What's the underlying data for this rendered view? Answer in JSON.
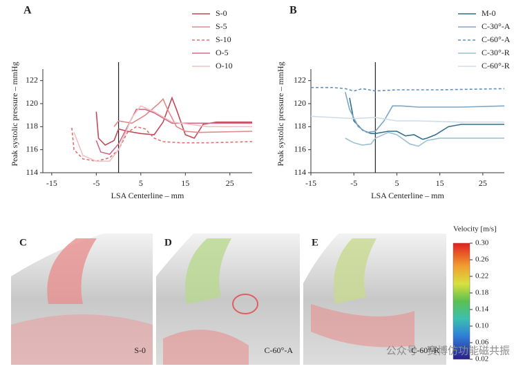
{
  "chart_data": [
    {
      "type": "line",
      "panel_label": "A",
      "xlabel": "LSA Centerline – mm",
      "ylabel": "Peak systolic pressure – mmHg",
      "xlim": [
        -17,
        30
      ],
      "xticks": [
        -15,
        -5,
        5,
        15,
        25
      ],
      "ylim": [
        114,
        123
      ],
      "yticks": [
        114,
        116,
        118,
        120,
        122
      ],
      "reference_line_x": 0,
      "legend": "top-right",
      "series": [
        {
          "name": "S-0",
          "color": "#c04a58",
          "dash": false,
          "x": [
            -5,
            -4.5,
            -3,
            -1,
            0,
            2,
            5,
            8,
            10,
            12,
            13,
            15,
            17,
            19,
            22,
            30
          ],
          "values": [
            119.3,
            117,
            116.4,
            116.8,
            117.8,
            117.6,
            117.4,
            117.3,
            118.4,
            120.5,
            119.5,
            117.3,
            117,
            118.2,
            118.4,
            118.4
          ]
        },
        {
          "name": "S-5",
          "color": "#e08a86",
          "dash": false,
          "x": [
            -1,
            0,
            3,
            6,
            9,
            10,
            11,
            13,
            15,
            18,
            30
          ],
          "values": [
            118,
            118.5,
            118.3,
            119,
            120,
            120.4,
            119.5,
            118,
            117.6,
            117.5,
            117.6
          ]
        },
        {
          "name": "S-10",
          "color": "#e07070",
          "dash": true,
          "x": [
            -10.5,
            -10,
            -8,
            -5,
            -2,
            0,
            2,
            4,
            6,
            8,
            10,
            14,
            20,
            30
          ],
          "values": [
            117.9,
            116,
            115.2,
            115,
            115.3,
            116,
            117.5,
            118,
            117.8,
            117,
            116.7,
            116.6,
            116.6,
            116.7
          ]
        },
        {
          "name": "O-5",
          "color": "#d06a8a",
          "dash": false,
          "x": [
            -5,
            -4,
            -2,
            0,
            2,
            4,
            6,
            8,
            12,
            20,
            30
          ],
          "values": [
            116.8,
            115.8,
            115.6,
            116.5,
            118,
            119.5,
            119.5,
            119.2,
            118.3,
            118.3,
            118.3
          ]
        },
        {
          "name": "O-10",
          "color": "#f0c0c0",
          "dash": false,
          "x": [
            -10,
            -8,
            -5,
            -2,
            0,
            3,
            5,
            8,
            12,
            20,
            30
          ],
          "values": [
            117.5,
            115.5,
            115,
            115,
            116,
            118.8,
            119.8,
            119.3,
            118.4,
            118,
            118
          ]
        }
      ]
    },
    {
      "type": "line",
      "panel_label": "B",
      "xlabel": "LSA Centerline – mm",
      "ylabel": "Peak systolic pressure – mmHg",
      "xlim": [
        -15,
        30
      ],
      "xticks": [
        -15,
        -5,
        5,
        15,
        25
      ],
      "ylim": [
        114,
        123
      ],
      "yticks": [
        114,
        116,
        118,
        120,
        122
      ],
      "reference_line_x": 0,
      "legend": "top-right",
      "series": [
        {
          "name": "M-0",
          "color": "#2f6f8f",
          "dash": false,
          "x": [
            -6,
            -5,
            -3,
            -1,
            0,
            3,
            5,
            7,
            9,
            11,
            12,
            14,
            17,
            20,
            30
          ],
          "values": [
            120.5,
            118.5,
            117.7,
            117.4,
            117.4,
            117.6,
            117.6,
            117.2,
            117.3,
            116.9,
            117,
            117.3,
            118,
            118.2,
            118.2
          ]
        },
        {
          "name": "C-30°-A",
          "color": "#7aa6c8",
          "dash": false,
          "x": [
            -7,
            -6,
            -4,
            -2,
            0,
            2,
            4,
            6,
            10,
            20,
            30
          ],
          "values": [
            121,
            119.5,
            118,
            117.5,
            117.6,
            118.5,
            119.8,
            119.8,
            119.7,
            119.7,
            119.8
          ]
        },
        {
          "name": "C-60°-A",
          "color": "#5f8fc0",
          "dash": true,
          "x": [
            -15,
            -10,
            -7,
            -5,
            -3,
            0,
            5,
            15,
            30
          ],
          "values": [
            121.4,
            121.4,
            121.3,
            121.1,
            121.3,
            121.1,
            121.2,
            121.2,
            121.3
          ]
        },
        {
          "name": "C-30°-R",
          "color": "#9cc0d4",
          "dash": false,
          "x": [
            -7,
            -5,
            -3,
            -1,
            0,
            3,
            5,
            8,
            10,
            12,
            15,
            20,
            30
          ],
          "values": [
            117,
            116.6,
            116.4,
            116.5,
            117,
            117.5,
            117.3,
            116.5,
            116.3,
            116.8,
            117,
            117,
            117
          ]
        },
        {
          "name": "C-60°-R",
          "color": "#cfdce8",
          "dash": false,
          "x": [
            -15,
            -10,
            -5,
            0,
            5,
            10,
            20,
            30
          ],
          "values": [
            118.9,
            118.8,
            118.7,
            118.8,
            118.5,
            118.5,
            118.4,
            118.4
          ]
        }
      ]
    }
  ],
  "panels": [
    {
      "label": "C",
      "caption": "S-0"
    },
    {
      "label": "D",
      "caption": "C-60°-A"
    },
    {
      "label": "E",
      "caption": "C-60°-R"
    }
  ],
  "colorbar": {
    "title": "Velocity [m/s]",
    "lim": [
      0.02,
      0.3
    ],
    "ticks": [
      {
        "value": 0.3,
        "label": "0.30"
      },
      0.26,
      0.22,
      0.18,
      0.14,
      {
        "value": 0.1,
        "label": "0.10"
      },
      0.06,
      0.02
    ]
  },
  "watermark": "公众号 · 赛博仿功能磁共振"
}
